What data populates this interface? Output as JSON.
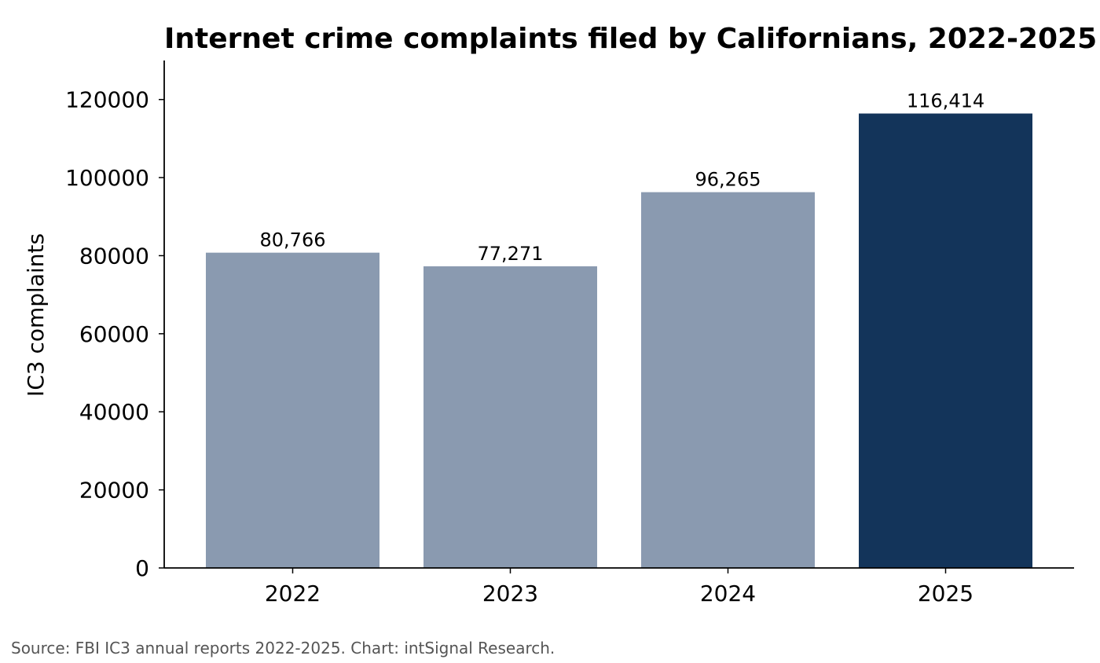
{
  "chart_data": {
    "type": "bar",
    "title": "Internet crime complaints filed by Californians, 2022-2025",
    "ylabel": "IC3 complaints",
    "xlabel": "",
    "categories": [
      "2022",
      "2023",
      "2024",
      "2025"
    ],
    "values": [
      80766,
      77271,
      96265,
      116414
    ],
    "data_labels": [
      "80,766",
      "77,271",
      "96,265",
      "116,414"
    ],
    "yticks": [
      0,
      20000,
      40000,
      60000,
      80000,
      100000,
      120000
    ],
    "ylim": [
      0,
      130000
    ],
    "grid": false,
    "legend": "none",
    "colors": {
      "default_bar": "#8a9ab0",
      "highlight_bar": "#13345a",
      "highlight_category": "2025",
      "text": "#000000",
      "source_text": "#555555",
      "axis": "#000000"
    }
  },
  "footer": {
    "source": "Source: FBI IC3 annual reports 2022-2025. Chart: intSignal Research."
  }
}
